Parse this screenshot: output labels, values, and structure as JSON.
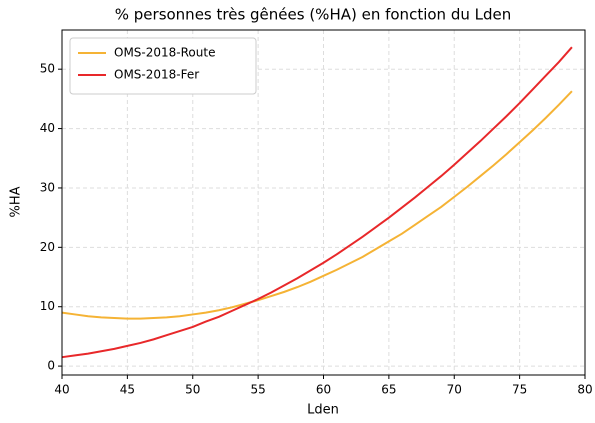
{
  "chart_data": {
    "type": "line",
    "title": "% personnes très gênées (%HA) en fonction du Lden",
    "xlabel": "Lden",
    "ylabel": "%HA",
    "x": [
      40,
      41,
      42,
      43,
      44,
      45,
      46,
      47,
      48,
      49,
      50,
      51,
      52,
      53,
      54,
      55,
      56,
      57,
      58,
      59,
      60,
      61,
      62,
      63,
      64,
      65,
      66,
      67,
      68,
      69,
      70,
      71,
      72,
      73,
      74,
      75,
      76,
      77,
      78,
      79
    ],
    "series": [
      {
        "name": "OMS-2018-Route",
        "color": "#f5b335",
        "values": [
          9.0,
          8.7,
          8.4,
          8.2,
          8.1,
          8.0,
          8.0,
          8.1,
          8.2,
          8.4,
          8.7,
          9.0,
          9.4,
          9.9,
          10.5,
          11.1,
          11.8,
          12.5,
          13.3,
          14.2,
          15.2,
          16.2,
          17.3,
          18.4,
          19.7,
          21.0,
          22.3,
          23.8,
          25.3,
          26.8,
          28.5,
          30.2,
          32.0,
          33.8,
          35.7,
          37.7,
          39.7,
          41.8,
          44.0,
          46.3
        ]
      },
      {
        "name": "OMS-2018-Fer",
        "color": "#e8282a",
        "values": [
          1.5,
          1.8,
          2.1,
          2.5,
          2.9,
          3.4,
          3.9,
          4.5,
          5.2,
          5.9,
          6.6,
          7.5,
          8.3,
          9.3,
          10.3,
          11.3,
          12.4,
          13.6,
          14.8,
          16.1,
          17.4,
          18.8,
          20.3,
          21.8,
          23.4,
          25.0,
          26.7,
          28.4,
          30.2,
          32.0,
          33.9,
          35.9,
          37.9,
          40.0,
          42.1,
          44.3,
          46.6,
          48.9,
          51.2,
          53.7
        ]
      }
    ],
    "xlim": [
      40,
      80
    ],
    "xticks": [
      40,
      45,
      50,
      55,
      60,
      65,
      70,
      75,
      80
    ],
    "ylim": [
      -1.5,
      56.6
    ],
    "yticks": [
      0,
      10,
      20,
      30,
      40,
      50
    ],
    "grid": true,
    "legend": "upper left"
  }
}
